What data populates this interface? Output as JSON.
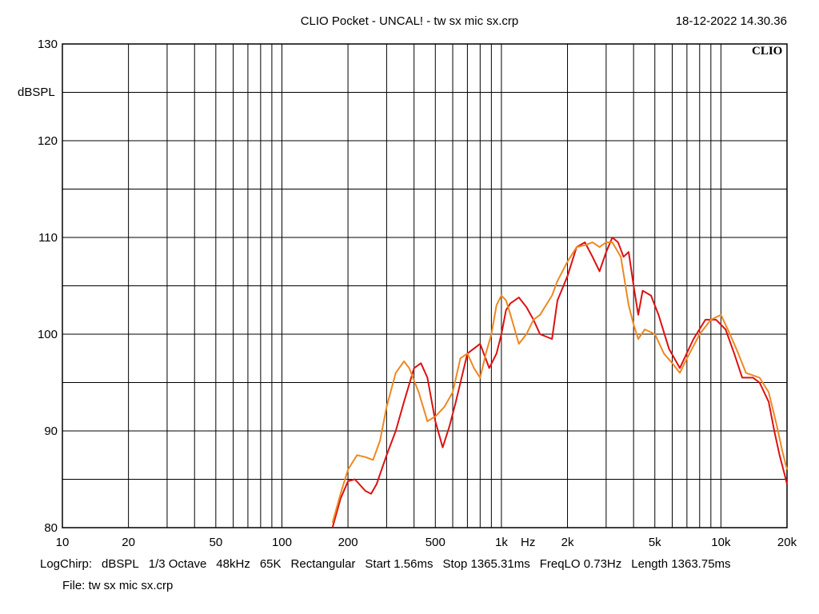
{
  "header": {
    "title": "CLIO Pocket - UNCAL! - tw sx mic sx.crp",
    "datetime": "18-12-2022 14.30.36",
    "logo": "CLIO"
  },
  "footer": {
    "items": [
      "LogChirp:",
      "dBSPL",
      "1/3 Octave",
      "48kHz",
      "65K",
      "Rectangular",
      "Start 1.56ms",
      "Stop 1365.31ms",
      "FreqLO 0.73Hz",
      "Length 1363.75ms"
    ],
    "file": "File: tw sx mic sx.crp"
  },
  "chart_data": {
    "type": "line",
    "ylabel": "dBSPL",
    "xlabel": "Hz",
    "xscale": "log",
    "xlim": [
      10,
      20000
    ],
    "ylim": [
      80,
      130
    ],
    "xticks": [
      {
        "v": 10,
        "label": "10"
      },
      {
        "v": 20,
        "label": "20"
      },
      {
        "v": 50,
        "label": "50"
      },
      {
        "v": 100,
        "label": "100"
      },
      {
        "v": 200,
        "label": "200"
      },
      {
        "v": 500,
        "label": "500"
      },
      {
        "v": 1000,
        "label": "1k"
      },
      {
        "v": 2000,
        "label": "2k"
      },
      {
        "v": 5000,
        "label": "5k"
      },
      {
        "v": 10000,
        "label": "10k"
      },
      {
        "v": 20000,
        "label": "20k"
      }
    ],
    "yticks": [
      80,
      90,
      100,
      110,
      120,
      130
    ],
    "grid": true,
    "series": [
      {
        "color": "#dd1111",
        "x": [
          170,
          185,
          200,
          215,
          240,
          255,
          270,
          300,
          330,
          360,
          400,
          430,
          460,
          500,
          540,
          580,
          620,
          700,
          800,
          880,
          950,
          1000,
          1050,
          1100,
          1150,
          1200,
          1300,
          1400,
          1500,
          1700,
          1800,
          2000,
          2200,
          2400,
          2600,
          2800,
          3000,
          3200,
          3400,
          3600,
          3800,
          4000,
          4200,
          4400,
          4800,
          5200,
          5800,
          6500,
          7500,
          8500,
          9500,
          10500,
          11500,
          12500,
          14000,
          15000,
          16500,
          17500,
          18500,
          19500,
          20000
        ],
        "y": [
          80,
          83,
          84.8,
          85,
          83.8,
          83.5,
          84.5,
          87.5,
          90,
          93,
          96.5,
          97,
          95.5,
          91,
          88.3,
          90.5,
          93,
          98,
          99,
          96.5,
          98,
          100,
          102.5,
          103.2,
          103.5,
          103.8,
          102.8,
          101.5,
          100,
          99.5,
          103.5,
          106,
          109,
          109.5,
          108,
          106.5,
          108.5,
          110,
          109.5,
          108,
          108.5,
          105,
          102,
          104.5,
          104,
          102,
          98.5,
          96.5,
          99.5,
          101.5,
          101.5,
          100.5,
          98,
          95.5,
          95.5,
          95,
          93,
          90,
          87.5,
          85.5,
          84.5
        ]
      },
      {
        "color": "#ee8822",
        "x": [
          170,
          185,
          200,
          220,
          240,
          260,
          280,
          300,
          330,
          360,
          380,
          420,
          460,
          500,
          550,
          600,
          650,
          700,
          750,
          800,
          850,
          900,
          950,
          1000,
          1050,
          1100,
          1200,
          1300,
          1400,
          1500,
          1700,
          1800,
          2000,
          2200,
          2400,
          2600,
          2800,
          3000,
          3200,
          3500,
          3800,
          4000,
          4200,
          4500,
          5000,
          5500,
          6000,
          6500,
          7000,
          8000,
          9000,
          10000,
          11000,
          12000,
          13000,
          15000,
          16500,
          18000,
          19000,
          20000
        ],
        "y": [
          80.5,
          83.5,
          86,
          87.5,
          87.3,
          87,
          89,
          92.5,
          96,
          97.2,
          96.5,
          94,
          91,
          91.5,
          92.5,
          94,
          97.5,
          98,
          96.5,
          95.5,
          98,
          100,
          103,
          104,
          103.5,
          102,
          99,
          100,
          101.5,
          102,
          104,
          105.5,
          107.5,
          109,
          109.2,
          109.5,
          109,
          109.5,
          109.5,
          108,
          103,
          101,
          99.5,
          100.5,
          100,
          98,
          97,
          96,
          97.5,
          100,
          101.5,
          102,
          100,
          98,
          96,
          95.5,
          94,
          90.5,
          88,
          86
        ]
      }
    ]
  }
}
